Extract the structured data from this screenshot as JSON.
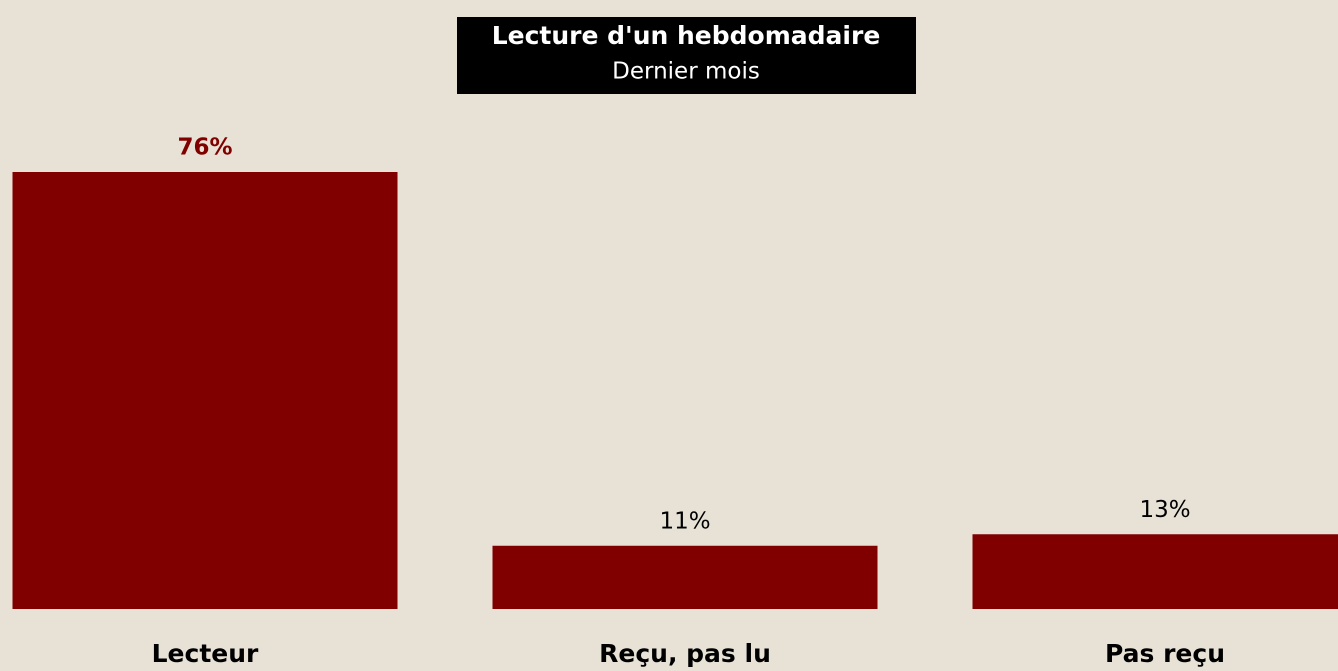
{
  "chart_data": {
    "type": "bar",
    "title": "Lecture d'un hebdomadaire",
    "subtitle": "Dernier mois",
    "categories": [
      "Lecteur",
      "Reçu, pas lu",
      "Pas reçu"
    ],
    "values": [
      76,
      11,
      13
    ],
    "value_labels": [
      "76%",
      "11%",
      "13%"
    ],
    "color": "#800000"
  }
}
